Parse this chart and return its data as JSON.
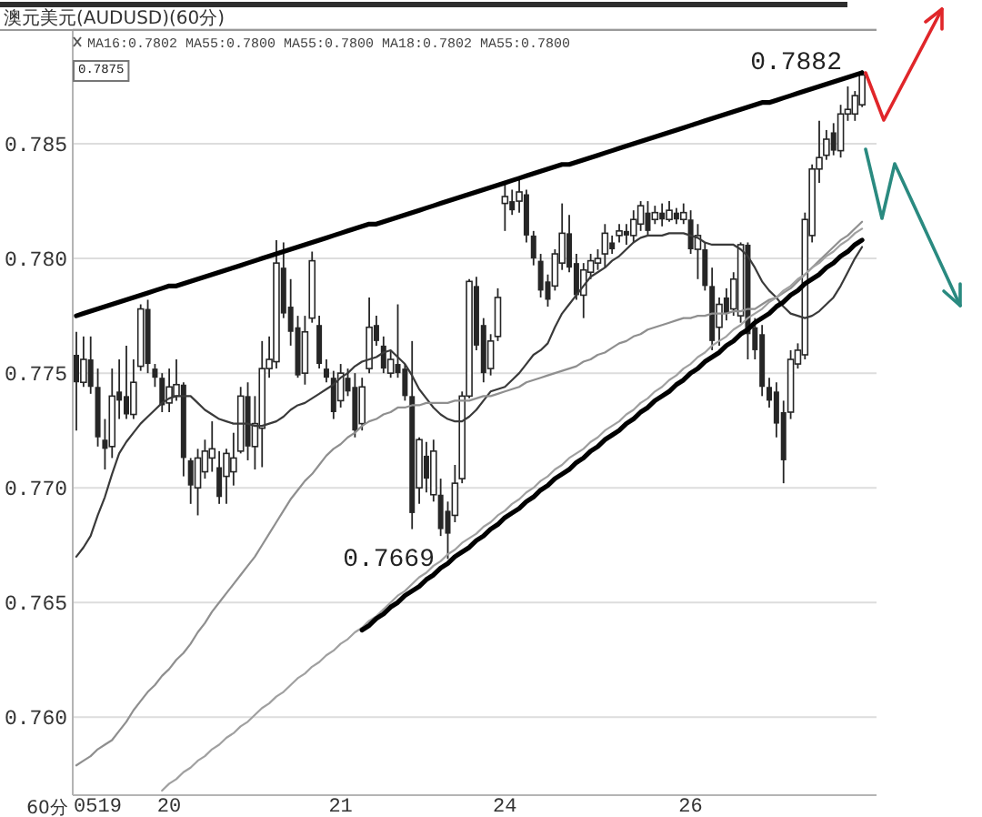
{
  "chart_data": {
    "type": "candlestick",
    "title": "澳元美元(AUDUSD)(60分)",
    "subtitle": "MA16:0.7802 MA55:0.7800 MA55:0.7800 MA18:0.7802 MA55:0.7800",
    "xlabel": "60分",
    "annotations": [
      "0.7875",
      "0.7882",
      "0.7669"
    ],
    "color": "#262626",
    "categories": [
      null,
      null,
      null,
      "0519",
      null,
      null,
      null,
      null,
      null,
      null,
      null,
      null,
      null,
      "20",
      null,
      null,
      null,
      null,
      null,
      null,
      null,
      null,
      null,
      null,
      null,
      null,
      null,
      null,
      null,
      null,
      null,
      null,
      null,
      null,
      null,
      null,
      null,
      "21",
      null,
      null,
      null,
      null,
      null,
      null,
      null,
      null,
      null,
      null,
      null,
      null,
      null,
      null,
      null,
      null,
      null,
      null,
      null,
      null,
      null,
      null,
      "24",
      null,
      null,
      null,
      null,
      null,
      null,
      null,
      null,
      null,
      null,
      null,
      null,
      null,
      null,
      null,
      null,
      null,
      null,
      null,
      null,
      null,
      null,
      null,
      null,
      null,
      "26",
      null,
      null,
      null,
      null,
      null,
      null,
      null,
      null,
      null,
      null,
      null,
      null,
      null,
      null,
      null,
      null,
      null,
      null,
      null,
      null,
      null,
      null,
      null,
      null
    ],
    "ohlc": [
      [
        0.7758,
        0.7768,
        0.7725,
        0.7746
      ],
      [
        0.7746,
        0.7766,
        0.7744,
        0.7756
      ],
      [
        0.7756,
        0.7766,
        0.7741,
        0.7744
      ],
      [
        0.7744,
        0.7752,
        0.7718,
        0.7722
      ],
      [
        0.7721,
        0.773,
        0.7708,
        0.7717
      ],
      [
        0.7718,
        0.7752,
        0.7713,
        0.774
      ],
      [
        0.7742,
        0.7756,
        0.773,
        0.7738
      ],
      [
        0.774,
        0.7762,
        0.773,
        0.7732
      ],
      [
        0.7732,
        0.7756,
        0.773,
        0.7746
      ],
      [
        0.7753,
        0.778,
        0.7751,
        0.7778
      ],
      [
        0.7778,
        0.7782,
        0.775,
        0.7754
      ],
      [
        0.7752,
        0.7754,
        0.7744,
        0.7748
      ],
      [
        0.7748,
        0.775,
        0.7733,
        0.7736
      ],
      [
        0.7737,
        0.7752,
        0.7733,
        0.7744
      ],
      [
        0.774,
        0.7756,
        0.7738,
        0.7745
      ],
      [
        0.7745,
        0.7746,
        0.7705,
        0.7713
      ],
      [
        0.7712,
        0.7713,
        0.7693,
        0.7701
      ],
      [
        0.77,
        0.7717,
        0.7688,
        0.7713
      ],
      [
        0.7707,
        0.7721,
        0.7704,
        0.7716
      ],
      [
        0.7713,
        0.7729,
        0.7707,
        0.7717
      ],
      [
        0.7709,
        0.7716,
        0.7693,
        0.7696
      ],
      [
        0.7705,
        0.7717,
        0.7693,
        0.7715
      ],
      [
        0.7707,
        0.7724,
        0.7701,
        0.7713
      ],
      [
        0.7716,
        0.7744,
        0.7715,
        0.774
      ],
      [
        0.774,
        0.7746,
        0.7712,
        0.7718
      ],
      [
        0.7718,
        0.774,
        0.7708,
        0.7728
      ],
      [
        0.7726,
        0.7764,
        0.7709,
        0.7752
      ],
      [
        0.7752,
        0.7766,
        0.7748,
        0.7756
      ],
      [
        0.7755,
        0.7808,
        0.7752,
        0.7798
      ],
      [
        0.7796,
        0.7807,
        0.7774,
        0.7776
      ],
      [
        0.7779,
        0.7791,
        0.7762,
        0.7768
      ],
      [
        0.777,
        0.7775,
        0.7748,
        0.7749
      ],
      [
        0.775,
        0.7775,
        0.7745,
        0.7768
      ],
      [
        0.7774,
        0.7803,
        0.7772,
        0.7799
      ],
      [
        0.7771,
        0.7775,
        0.7752,
        0.7754
      ],
      [
        0.7752,
        0.7756,
        0.7746,
        0.7748
      ],
      [
        0.7748,
        0.7751,
        0.773,
        0.7733
      ],
      [
        0.7738,
        0.7754,
        0.7735,
        0.775
      ],
      [
        0.7748,
        0.7752,
        0.774,
        0.7742
      ],
      [
        0.7744,
        0.775,
        0.7722,
        0.7725
      ],
      [
        0.7728,
        0.7748,
        0.7725,
        0.7744
      ],
      [
        0.7752,
        0.7783,
        0.775,
        0.777
      ],
      [
        0.7771,
        0.7775,
        0.7762,
        0.7764
      ],
      [
        0.7762,
        0.7766,
        0.775,
        0.7752
      ],
      [
        0.775,
        0.776,
        0.7748,
        0.7756
      ],
      [
        0.7754,
        0.778,
        0.7748,
        0.775
      ],
      [
        0.7752,
        0.7754,
        0.7738,
        0.774
      ],
      [
        0.774,
        0.7764,
        0.7682,
        0.7689
      ],
      [
        0.77,
        0.7722,
        0.7693,
        0.7721
      ],
      [
        0.7714,
        0.772,
        0.7698,
        0.7704
      ],
      [
        0.7697,
        0.7721,
        0.7694,
        0.7716
      ],
      [
        0.7697,
        0.7704,
        0.7679,
        0.7682
      ],
      [
        0.769,
        0.7694,
        0.7669,
        0.768
      ],
      [
        0.7688,
        0.771,
        0.7685,
        0.7702
      ],
      [
        0.7704,
        0.7742,
        0.7702,
        0.774
      ],
      [
        0.774,
        0.7791,
        0.7739,
        0.779
      ],
      [
        0.7788,
        0.7792,
        0.776,
        0.7762
      ],
      [
        0.7771,
        0.7774,
        0.7746,
        0.775
      ],
      [
        0.7752,
        0.7767,
        0.7749,
        0.7764
      ],
      [
        0.7766,
        0.7787,
        0.7764,
        0.7783
      ],
      [
        0.7824,
        0.7833,
        0.7812,
        0.7827
      ],
      [
        0.7825,
        0.783,
        0.7819,
        0.7821
      ],
      [
        0.7825,
        0.7835,
        0.782,
        0.7829
      ],
      [
        0.7828,
        0.783,
        0.7807,
        0.781
      ],
      [
        0.781,
        0.7812,
        0.7797,
        0.78
      ],
      [
        0.7799,
        0.7802,
        0.7783,
        0.7786
      ],
      [
        0.779,
        0.7793,
        0.7779,
        0.7782
      ],
      [
        0.7788,
        0.7804,
        0.7786,
        0.7802
      ],
      [
        0.7798,
        0.7824,
        0.7795,
        0.7811
      ],
      [
        0.7811,
        0.7819,
        0.7794,
        0.7796
      ],
      [
        0.7798,
        0.7802,
        0.7782,
        0.7784
      ],
      [
        0.7784,
        0.7798,
        0.7774,
        0.7795
      ],
      [
        0.7794,
        0.7802,
        0.7791,
        0.7799
      ],
      [
        0.7798,
        0.7804,
        0.7795,
        0.78
      ],
      [
        0.7802,
        0.7815,
        0.7796,
        0.7811
      ],
      [
        0.7807,
        0.781,
        0.7802,
        0.7804
      ],
      [
        0.781,
        0.7815,
        0.7807,
        0.7812
      ],
      [
        0.7812,
        0.7815,
        0.7806,
        0.781
      ],
      [
        0.781,
        0.7821,
        0.7807,
        0.7817
      ],
      [
        0.7815,
        0.7825,
        0.7812,
        0.7823
      ],
      [
        0.782,
        0.7825,
        0.781,
        0.7812
      ],
      [
        0.7817,
        0.7823,
        0.7815,
        0.782
      ],
      [
        0.782,
        0.7824,
        0.7814,
        0.7817
      ],
      [
        0.7817,
        0.7825,
        0.7816,
        0.7821
      ],
      [
        0.782,
        0.7822,
        0.7815,
        0.7817
      ],
      [
        0.7817,
        0.7824,
        0.7815,
        0.782
      ],
      [
        0.7817,
        0.7821,
        0.7802,
        0.7804
      ],
      [
        0.7804,
        0.7815,
        0.7791,
        0.781
      ],
      [
        0.7804,
        0.7807,
        0.7786,
        0.7788
      ],
      [
        0.7788,
        0.7796,
        0.776,
        0.7764
      ],
      [
        0.777,
        0.7783,
        0.7762,
        0.778
      ],
      [
        0.7783,
        0.7787,
        0.7773,
        0.7776
      ],
      [
        0.7778,
        0.7794,
        0.7775,
        0.7791
      ],
      [
        0.7775,
        0.7807,
        0.7772,
        0.7806
      ],
      [
        0.7806,
        0.7807,
        0.7756,
        0.7767
      ],
      [
        0.777,
        0.7774,
        0.7756,
        0.776
      ],
      [
        0.7767,
        0.7771,
        0.774,
        0.7744
      ],
      [
        0.7744,
        0.7748,
        0.7735,
        0.7738
      ],
      [
        0.7742,
        0.7746,
        0.7722,
        0.7728
      ],
      [
        0.7733,
        0.7738,
        0.7702,
        0.7712
      ],
      [
        0.7733,
        0.776,
        0.773,
        0.7756
      ],
      [
        0.7754,
        0.7763,
        0.7752,
        0.776
      ],
      [
        0.7758,
        0.782,
        0.7756,
        0.7817
      ],
      [
        0.781,
        0.7841,
        0.7807,
        0.7839
      ],
      [
        0.7839,
        0.786,
        0.7833,
        0.7844
      ],
      [
        0.7845,
        0.7856,
        0.7843,
        0.7852
      ],
      [
        0.7855,
        0.7859,
        0.7845,
        0.7847
      ],
      [
        0.7847,
        0.7867,
        0.7844,
        0.7863
      ],
      [
        0.7863,
        0.7875,
        0.786,
        0.7865
      ],
      [
        0.7863,
        0.7873,
        0.786,
        0.7871
      ],
      [
        0.7867,
        0.7882,
        0.7866,
        0.788
      ]
    ],
    "series": [
      {
        "type": "line",
        "color": "#3a3a3a",
        "values": [
          0.767,
          0.7674,
          0.7679,
          0.7688,
          0.7696,
          0.7706,
          0.7715,
          0.772,
          0.7724,
          0.7728,
          0.7731,
          0.7734,
          0.7737,
          0.7739,
          0.774,
          0.774,
          0.774,
          0.7737,
          0.7734,
          0.7732,
          0.773,
          0.7729,
          0.7728,
          0.7728,
          0.7728,
          0.7727,
          0.7727,
          0.7728,
          0.7729,
          0.7731,
          0.7734,
          0.7736,
          0.7737,
          0.7739,
          0.7741,
          0.7743,
          0.7745,
          0.7748,
          0.775,
          0.7753,
          0.7755,
          0.7756,
          0.7757,
          0.7759,
          0.776,
          0.7757,
          0.7754,
          0.7749,
          0.7743,
          0.7739,
          0.7735,
          0.7732,
          0.773,
          0.7729,
          0.7729,
          0.7731,
          0.7734,
          0.7738,
          0.7742,
          0.7743,
          0.7744,
          0.7747,
          0.775,
          0.7754,
          0.7758,
          0.776,
          0.7763,
          0.777,
          0.7776,
          0.778,
          0.7784,
          0.7788,
          0.7792,
          0.7794,
          0.7796,
          0.7799,
          0.7801,
          0.7804,
          0.7807,
          0.7809,
          0.781,
          0.781,
          0.781,
          0.7811,
          0.7811,
          0.7811,
          0.781,
          0.7809,
          0.7807,
          0.7806,
          0.7806,
          0.7806,
          0.7806,
          0.7804,
          0.7801,
          0.7796,
          0.779,
          0.7786,
          0.7783,
          0.7779,
          0.7776,
          0.7775,
          0.7774,
          0.7775,
          0.7777,
          0.778,
          0.7783,
          0.7788,
          0.7794,
          0.78,
          0.7805
        ]
      },
      {
        "type": "line",
        "color": "#8f8f8f",
        "values": [
          0.7579,
          0.7581,
          0.7583,
          0.7586,
          0.7588,
          0.759,
          0.7594,
          0.7598,
          0.7603,
          0.7607,
          0.7611,
          0.7614,
          0.7618,
          0.7621,
          0.7625,
          0.7628,
          0.7632,
          0.7637,
          0.7641,
          0.7646,
          0.765,
          0.7654,
          0.7658,
          0.7662,
          0.7666,
          0.767,
          0.7675,
          0.768,
          0.7685,
          0.769,
          0.7695,
          0.7699,
          0.7703,
          0.7706,
          0.771,
          0.7714,
          0.7717,
          0.7719,
          0.7722,
          0.7724,
          0.7727,
          0.7729,
          0.773,
          0.7732,
          0.7733,
          0.7735,
          0.7735,
          0.7736,
          0.7736,
          0.7737,
          0.7737,
          0.7737,
          0.7737,
          0.7738,
          0.7738,
          0.7738,
          0.7739,
          0.774,
          0.774,
          0.7741,
          0.7742,
          0.7743,
          0.7744,
          0.7746,
          0.7747,
          0.7748,
          0.7749,
          0.775,
          0.7751,
          0.7752,
          0.7753,
          0.7755,
          0.7756,
          0.7758,
          0.7759,
          0.7761,
          0.7763,
          0.7764,
          0.7766,
          0.7767,
          0.7769,
          0.777,
          0.7771,
          0.7772,
          0.7773,
          0.7774,
          0.7774,
          0.7775,
          0.7775,
          0.7776,
          0.7776,
          0.7776,
          0.7777,
          0.7777,
          0.7778,
          0.7778,
          0.778,
          0.7782,
          0.7783,
          0.7785,
          0.7787,
          0.779,
          0.7793,
          0.7796,
          0.7799,
          0.7802,
          0.7805,
          0.7808,
          0.781,
          0.7813,
          0.7816
        ]
      },
      {
        "type": "line",
        "color": "#a0a0a0",
        "values": [
          null,
          null,
          null,
          null,
          null,
          null,
          null,
          null,
          null,
          null,
          null,
          null,
          0.7568,
          0.7571,
          0.7573,
          0.7576,
          0.7578,
          0.7581,
          0.7583,
          0.7586,
          0.7588,
          0.7591,
          0.7593,
          0.7596,
          0.7598,
          0.7601,
          0.7604,
          0.7606,
          0.7609,
          0.7611,
          0.7614,
          0.7617,
          0.7619,
          0.7622,
          0.7624,
          0.7627,
          0.7629,
          0.7632,
          0.7634,
          0.7637,
          0.7639,
          0.7642,
          0.7644,
          0.7647,
          0.765,
          0.7653,
          0.7655,
          0.7658,
          0.7661,
          0.7663,
          0.7666,
          0.7668,
          0.7671,
          0.7673,
          0.7676,
          0.7678,
          0.768,
          0.7683,
          0.7685,
          0.7688,
          0.769,
          0.7693,
          0.7695,
          0.7698,
          0.77,
          0.7703,
          0.7705,
          0.7708,
          0.771,
          0.7713,
          0.7715,
          0.7717,
          0.772,
          0.7722,
          0.7725,
          0.7727,
          0.7729,
          0.7732,
          0.7734,
          0.7737,
          0.7739,
          0.7742,
          0.7744,
          0.7747,
          0.7749,
          0.7752,
          0.7754,
          0.7757,
          0.7759,
          0.7762,
          0.7764,
          0.7766,
          0.7769,
          0.7771,
          0.7774,
          0.7776,
          0.7778,
          0.7781,
          0.7783,
          0.7786,
          0.7788,
          0.7791,
          0.7793,
          0.7796,
          0.7798,
          0.7801,
          0.7803,
          0.7806,
          0.7808,
          0.7811,
          0.7813
        ]
      },
      {
        "type": "line",
        "color": "#000000",
        "values": [
          0.7775,
          0.7776,
          0.7777,
          0.7778,
          0.7779,
          0.778,
          0.7781,
          0.7782,
          0.7783,
          0.7784,
          0.7785,
          0.7786,
          0.7787,
          0.7788,
          0.7788,
          0.7789,
          0.779,
          0.7791,
          0.7792,
          0.7793,
          0.7794,
          0.7795,
          0.7796,
          0.7797,
          0.7798,
          0.7799,
          0.78,
          0.7801,
          0.7802,
          0.7803,
          0.7804,
          0.7805,
          0.7806,
          0.7807,
          0.7808,
          0.7809,
          0.781,
          0.7811,
          0.7812,
          0.7813,
          0.7814,
          0.7815,
          0.7815,
          0.7816,
          0.7817,
          0.7818,
          0.7819,
          0.782,
          0.7821,
          0.7822,
          0.7823,
          0.7824,
          0.7825,
          0.7826,
          0.7827,
          0.7828,
          0.7829,
          0.783,
          0.7831,
          0.7832,
          0.7833,
          0.7834,
          0.7835,
          0.7836,
          0.7837,
          0.7838,
          0.7839,
          0.784,
          0.7841,
          0.7841,
          0.7842,
          0.7843,
          0.7844,
          0.7845,
          0.7846,
          0.7847,
          0.7848,
          0.7849,
          0.785,
          0.7851,
          0.7852,
          0.7853,
          0.7854,
          0.7855,
          0.7856,
          0.7857,
          0.7858,
          0.7859,
          0.786,
          0.7861,
          0.7862,
          0.7863,
          0.7864,
          0.7865,
          0.7866,
          0.7867,
          0.7868,
          0.7868,
          0.7869,
          0.787,
          0.7871,
          0.7872,
          0.7873,
          0.7874,
          0.7875,
          0.7876,
          0.7877,
          0.7878,
          0.7879,
          0.788,
          0.7881
        ]
      },
      {
        "type": "line",
        "color": "#000000",
        "values": [
          null,
          null,
          null,
          null,
          null,
          null,
          null,
          null,
          null,
          null,
          null,
          null,
          null,
          null,
          null,
          null,
          null,
          null,
          null,
          null,
          null,
          null,
          null,
          null,
          null,
          null,
          null,
          null,
          null,
          null,
          null,
          null,
          null,
          null,
          null,
          null,
          null,
          null,
          null,
          null,
          0.7638,
          0.764,
          0.7643,
          0.7645,
          0.7648,
          0.765,
          0.7653,
          0.7655,
          0.7657,
          0.766,
          0.7662,
          0.7665,
          0.7667,
          0.767,
          0.7672,
          0.7674,
          0.7677,
          0.7679,
          0.7682,
          0.7684,
          0.7687,
          0.7689,
          0.7691,
          0.7694,
          0.7696,
          0.7699,
          0.7701,
          0.7704,
          0.7706,
          0.7708,
          0.7711,
          0.7713,
          0.7716,
          0.7718,
          0.7721,
          0.7723,
          0.7725,
          0.7728,
          0.773,
          0.7733,
          0.7735,
          0.7738,
          0.774,
          0.7742,
          0.7745,
          0.7747,
          0.775,
          0.7752,
          0.7755,
          0.7757,
          0.7759,
          0.7762,
          0.7764,
          0.7767,
          0.7769,
          0.7772,
          0.7774,
          0.7776,
          0.7779,
          0.7781,
          0.7784,
          0.7786,
          0.7789,
          0.7791,
          0.7793,
          0.7796,
          0.7798,
          0.7801,
          0.7803,
          0.7806,
          0.7808
        ]
      }
    ],
    "ylim": [
      0.7566,
      0.79
    ],
    "yticks": [
      {
        "value": 0.76,
        "label": "0.760"
      },
      0.765,
      {
        "value": 0.77,
        "label": "0.770"
      },
      0.775,
      {
        "value": 0.78,
        "label": "0.780"
      },
      0.785
    ],
    "grid": "y"
  }
}
